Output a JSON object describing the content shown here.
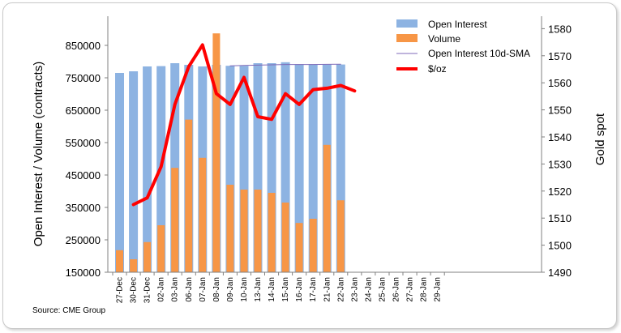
{
  "chart_data": {
    "type": "bar",
    "categories": [
      "27-Dec",
      "30-Dec",
      "31-Dec",
      "02-Jan",
      "03-Jan",
      "06-Jan",
      "07-Jan",
      "08-Jan",
      "09-Jan",
      "10-Jan",
      "13-Jan",
      "14-Jan",
      "15-Jan",
      "16-Jan",
      "17-Jan",
      "21-Jan",
      "22-Jan",
      "23-Jan",
      "24-Jan",
      "25-Jan",
      "26-Jan",
      "27-Jan",
      "28-Jan",
      "29-Jan"
    ],
    "series": [
      {
        "name": "Open Interest",
        "kind": "bar",
        "axis": "left",
        "color": "#8db3e2",
        "values": [
          765000,
          770000,
          785000,
          786000,
          795000,
          790000,
          785000,
          790000,
          787000,
          787000,
          795000,
          795000,
          798000,
          792000,
          792000,
          791000,
          791000,
          null,
          null,
          null,
          null,
          null,
          null,
          null
        ]
      },
      {
        "name": "Volume",
        "kind": "bar",
        "axis": "left",
        "color": "#f79646",
        "values": [
          218000,
          190000,
          243000,
          295000,
          472000,
          621000,
          503000,
          887000,
          420000,
          405000,
          405000,
          395000,
          365000,
          302000,
          315000,
          543000,
          372000,
          null,
          null,
          null,
          null,
          null,
          null,
          null
        ]
      },
      {
        "name": "Open Interest 10d-SMA",
        "kind": "line",
        "axis": "left",
        "color": "#7f6ab8",
        "values": [
          null,
          null,
          null,
          null,
          null,
          null,
          null,
          null,
          787000,
          788000,
          789000,
          790000,
          791000,
          791000,
          791000,
          791500,
          792000,
          null,
          null,
          null,
          null,
          null,
          null,
          null
        ]
      },
      {
        "name": "$/oz",
        "kind": "line",
        "axis": "right",
        "color": "#ff0000",
        "values": [
          null,
          1515,
          1517.5,
          1529,
          1552,
          1566,
          1574,
          1556,
          1552,
          1562,
          1547.5,
          1546.5,
          1556,
          1552,
          1557.5,
          1558,
          1559,
          1557,
          null,
          null,
          null,
          null,
          null,
          null
        ]
      }
    ],
    "y_left": {
      "label": "Open Interest / Volume (contracts)",
      "ylim": [
        150000,
        850000
      ],
      "ticks": [
        "150000",
        "250000",
        "350000",
        "450000",
        "550000",
        "650000",
        "750000",
        "850000"
      ]
    },
    "y_right": {
      "label": "Gold spot",
      "ylim": [
        1490,
        1580
      ],
      "ticks": [
        "1490",
        "1500",
        "1510",
        "1520",
        "1530",
        "1540",
        "1550",
        "1560",
        "1570",
        "1580"
      ]
    },
    "legend": {
      "placement": "top-right",
      "entries": [
        "Open Interest",
        "Volume",
        "Open Interest 10d-SMA",
        "$/oz"
      ]
    },
    "grid": false,
    "source": "Source: CME Group"
  }
}
